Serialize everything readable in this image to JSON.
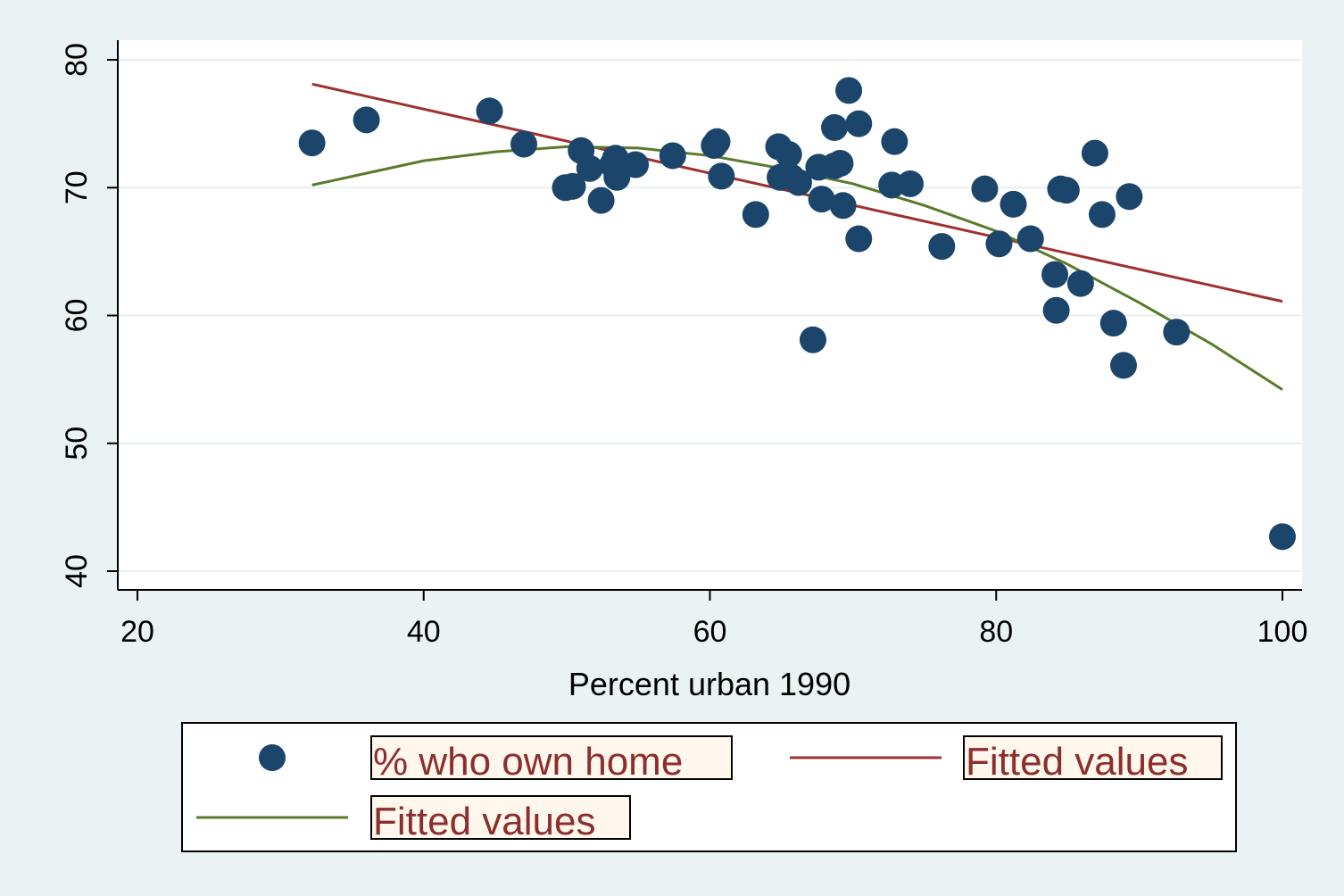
{
  "chart_data": {
    "type": "scatter",
    "xlabel": "Percent urban 1990",
    "ylabel": "",
    "xlim": [
      20,
      100
    ],
    "ylim": [
      40,
      80
    ],
    "xticks": [
      20,
      40,
      60,
      80,
      100
    ],
    "yticks": [
      40,
      50,
      60,
      70,
      80
    ],
    "grid": true,
    "legend_position": "bottom",
    "colors": {
      "points": "#1c456b",
      "linear_fit": "#a03030",
      "quadratic_fit": "#5a7a2a",
      "plot_background": "#ffffff",
      "page_background": "#eaf2f3",
      "legend_text": "#8c2e2e",
      "legend_label_background": "#fff6ec"
    },
    "series": [
      {
        "name": "% who own home",
        "kind": "scatter",
        "points": [
          [
            32.2,
            73.5
          ],
          [
            36.0,
            75.3
          ],
          [
            44.6,
            76.0
          ],
          [
            47.0,
            73.4
          ],
          [
            49.9,
            70.0
          ],
          [
            50.4,
            70.1
          ],
          [
            51.0,
            72.9
          ],
          [
            51.6,
            71.5
          ],
          [
            52.4,
            69.0
          ],
          [
            53.2,
            71.8
          ],
          [
            53.4,
            72.3
          ],
          [
            53.5,
            70.8
          ],
          [
            54.8,
            71.8
          ],
          [
            57.4,
            72.5
          ],
          [
            60.3,
            73.3
          ],
          [
            60.5,
            73.6
          ],
          [
            60.8,
            70.9
          ],
          [
            63.2,
            67.9
          ],
          [
            64.8,
            73.2
          ],
          [
            64.9,
            70.8
          ],
          [
            65.5,
            72.6
          ],
          [
            65.7,
            70.8
          ],
          [
            66.2,
            70.4
          ],
          [
            67.6,
            71.6
          ],
          [
            67.2,
            58.1
          ],
          [
            67.8,
            69.1
          ],
          [
            68.7,
            74.7
          ],
          [
            68.7,
            71.7
          ],
          [
            69.1,
            71.9
          ],
          [
            69.3,
            68.6
          ],
          [
            69.7,
            77.6
          ],
          [
            70.4,
            66.0
          ],
          [
            70.4,
            75.0
          ],
          [
            72.7,
            70.2
          ],
          [
            72.9,
            73.6
          ],
          [
            74.0,
            70.3
          ],
          [
            76.2,
            65.4
          ],
          [
            79.2,
            69.9
          ],
          [
            80.2,
            65.6
          ],
          [
            81.2,
            68.7
          ],
          [
            82.4,
            66.0
          ],
          [
            84.1,
            63.2
          ],
          [
            84.2,
            60.4
          ],
          [
            84.5,
            69.9
          ],
          [
            84.9,
            69.8
          ],
          [
            85.9,
            62.5
          ],
          [
            86.9,
            72.7
          ],
          [
            87.4,
            67.9
          ],
          [
            88.2,
            59.4
          ],
          [
            88.9,
            56.1
          ],
          [
            89.3,
            69.3
          ],
          [
            92.6,
            58.7
          ],
          [
            100.0,
            42.7
          ]
        ]
      },
      {
        "name": "Fitted values",
        "kind": "line",
        "points": [
          [
            32.2,
            78.1
          ],
          [
            100.0,
            61.1
          ]
        ]
      },
      {
        "name": "Fitted values",
        "kind": "line",
        "points": [
          [
            32.2,
            70.2
          ],
          [
            40.0,
            72.1
          ],
          [
            45.0,
            72.8
          ],
          [
            50.0,
            73.2
          ],
          [
            55.0,
            73.1
          ],
          [
            60.0,
            72.5
          ],
          [
            65.0,
            71.5
          ],
          [
            70.0,
            70.3
          ],
          [
            75.0,
            68.6
          ],
          [
            80.0,
            66.6
          ],
          [
            85.0,
            64.0
          ],
          [
            90.0,
            61.0
          ],
          [
            95.0,
            57.8
          ],
          [
            100.0,
            54.2
          ]
        ]
      }
    ]
  }
}
